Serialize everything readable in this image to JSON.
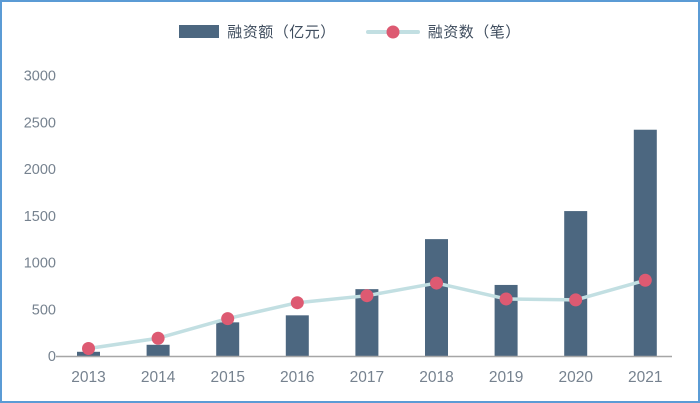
{
  "chart": {
    "colors": {
      "bar": "#4c6780",
      "line": "#c2dfe2",
      "marker": "#dd5a72",
      "axis_line": "#a6a6a6",
      "tick_text": "#76828f",
      "legend_text": "#3f4d5e",
      "border": "#5b9bd5",
      "background": "#ffffff"
    }
  },
  "chart_data": {
    "type": "bar",
    "title": "",
    "xlabel": "",
    "ylabel": "",
    "categories": [
      "2013",
      "2014",
      "2015",
      "2016",
      "2017",
      "2018",
      "2019",
      "2020",
      "2021"
    ],
    "series": [
      {
        "name": "融资额（亿元）",
        "type": "bar",
        "values": [
          45,
          120,
          360,
          435,
          715,
          1250,
          760,
          1550,
          2420
        ]
      },
      {
        "name": "融资数（笔）",
        "type": "line",
        "values": [
          80,
          190,
          400,
          570,
          645,
          780,
          610,
          600,
          810
        ]
      }
    ],
    "ylim": [
      0,
      3000
    ],
    "yticks": [
      0,
      500,
      1000,
      1500,
      2000,
      2500,
      3000
    ],
    "grid": false,
    "legend_position": "top-center"
  }
}
